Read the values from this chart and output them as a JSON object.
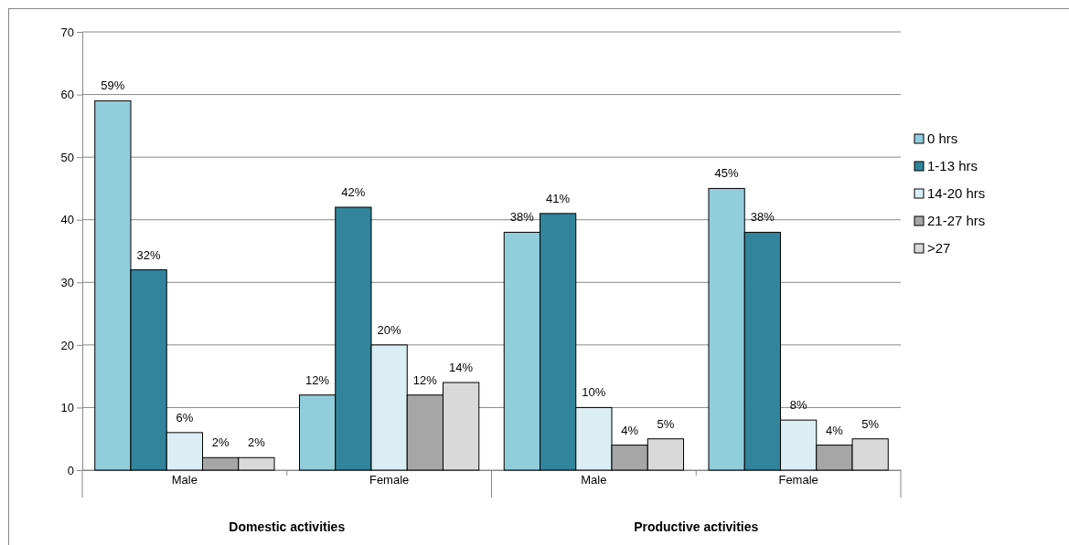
{
  "chart_data": {
    "type": "bar",
    "categories": [
      "Male",
      "Female",
      "Male",
      "Female"
    ],
    "series": [
      {
        "name": "0 hrs",
        "color": "#92cddc",
        "values": [
          59,
          12,
          38,
          45
        ],
        "value_labels": [
          "59%",
          "12%",
          "38%",
          "45%"
        ]
      },
      {
        "name": "1-13 hrs",
        "color": "#31849b",
        "values": [
          32,
          42,
          41,
          38
        ],
        "value_labels": [
          "32%",
          "42%",
          "41%",
          "38%"
        ]
      },
      {
        "name": "14-20 hrs",
        "color": "#daeef3",
        "values": [
          6,
          20,
          10,
          8
        ],
        "value_labels": [
          "6%",
          "20%",
          "10%",
          "8%"
        ]
      },
      {
        "name": "21-27 hrs",
        "color": "#a6a6a6",
        "values": [
          2,
          12,
          4,
          4
        ],
        "value_labels": [
          "2%",
          "12%",
          "4%",
          "4%"
        ]
      },
      {
        "name": ">27",
        "color": "#d9d9d9",
        "values": [
          2,
          14,
          5,
          5
        ],
        "value_labels": [
          "2%",
          "14%",
          "5%",
          "5%"
        ]
      }
    ],
    "ylim": [
      0,
      70
    ],
    "yticks": [
      0,
      10,
      20,
      30,
      40,
      50,
      60,
      70
    ],
    "grid": "y",
    "legend": "right",
    "annotations": [
      "Domestic activities",
      "Productive activities"
    ]
  }
}
